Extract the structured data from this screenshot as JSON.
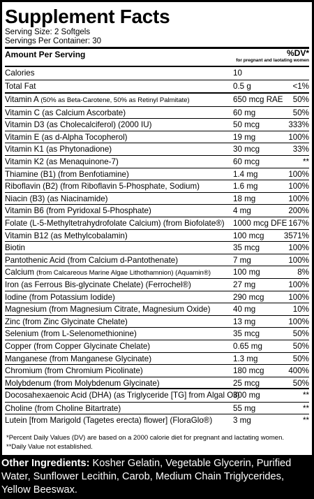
{
  "title": "Supplement Facts",
  "serving_size": "Serving Size: 2 Softgels",
  "servings_per_container": "Servings Per Container: 30",
  "header": {
    "amount_per_serving": "Amount Per Serving",
    "dv": "%DV*",
    "dv_note": "for pregnant and laotating women"
  },
  "group1": [
    {
      "name": "Calories",
      "amount": "10",
      "dv": ""
    },
    {
      "name": "Total Fat",
      "amount": "0.5 g",
      "dv": "<1%"
    }
  ],
  "group2": [
    {
      "name": "Vitamin A ",
      "name_small": "(50% as Beta-Carotene, 50% as Retinyl Palmitate)",
      "amount": "650 mcg RAE",
      "dv": "50%"
    },
    {
      "name": "Vitamin C (as Calcium Ascorbate)",
      "amount": "60 mg",
      "dv": "50%"
    },
    {
      "name": "Vitamin D3 (as Cholecalciferol) (2000 IU)",
      "amount": "50 mcg",
      "dv": "333%"
    },
    {
      "name": "Vitamin E (as d-Alpha Tocopherol)",
      "amount": "19 mg",
      "dv": "100%"
    },
    {
      "name": "Vitamin K1 (as Phytonadione)",
      "amount": "30 mcg",
      "dv": "33%"
    },
    {
      "name": "Vitamin K2 (as Menaquinone-7)",
      "amount": "60 mcg",
      "dv": "**"
    },
    {
      "name": "Thiamine (B1) (from Benfotiamine)",
      "amount": "1.4 mg",
      "dv": "100%"
    },
    {
      "name": "Riboflavin (B2) (from Riboflavin 5-Phosphate, Sodium)",
      "amount": "1.6 mg",
      "dv": "100%"
    },
    {
      "name": "Niacin (B3) (as Niacinamide)",
      "amount": "18 mg",
      "dv": "100%"
    },
    {
      "name": "Vitamin B6 (from Pyridoxal 5-Phosphate)",
      "amount": "4 mg",
      "dv": "200%"
    },
    {
      "name": "Folate (L-5-Methyltetrahydrofolate Calcium) (from Biofolate®)",
      "amount": "1000 mcg DFE",
      "dv": "167%"
    },
    {
      "name": "Vitamin B12 (as Methylcobalamin)",
      "amount": "100 mcg",
      "dv": "3571%"
    },
    {
      "name": "Biotin",
      "amount": "35 mcg",
      "dv": "100%"
    },
    {
      "name": "Pantothenic Acid (from Calcium d-Pantothenate)",
      "amount": "7 mg",
      "dv": "100%"
    },
    {
      "name": "Calcium ",
      "name_small": "(from Calcareous Marine Algae Lithothamnion) (Aquamin®)",
      "amount": "100 mg",
      "dv": "8%"
    },
    {
      "name": "Iron (as Ferrous Bis-glycinate Chelate) (Ferrochel®)",
      "amount": "27 mg",
      "dv": "100%"
    },
    {
      "name": "Iodine (from Potassium Iodide)",
      "amount": "290 mcg",
      "dv": "100%"
    },
    {
      "name": "Magnesium (from Magnesium Citrate, Magnesium Oxide)",
      "amount": "40 mg",
      "dv": "10%"
    },
    {
      "name": "Zinc (from Zinc Glycinate Chelate)",
      "amount": "13 mg",
      "dv": "100%"
    },
    {
      "name": "Selenium (from L-Selenomethionine)",
      "amount": "35 mcg",
      "dv": "50%"
    },
    {
      "name": "Copper (from Copper Glycinate Chelate)",
      "amount": "0.65 mg",
      "dv": "50%"
    },
    {
      "name": "Manganese (from Manganese Glycinate)",
      "amount": "1.3 mg",
      "dv": "50%"
    },
    {
      "name": "Chromium (from Chromium Picolinate)",
      "amount": "180 mcg",
      "dv": "400%"
    },
    {
      "name": "Molybdenum (from Molybdenum Glycinate)",
      "amount": "25 mcg",
      "dv": "50%"
    }
  ],
  "group3": [
    {
      "name": "Docosahexaenoic Acid (DHA) (as Triglyceride [TG] from Algal Oil)",
      "amount": "300 mg",
      "dv": "**"
    },
    {
      "name": "Choline (from Choline Bitartrate)",
      "amount": "55 mg",
      "dv": "**"
    },
    {
      "name": "Lutein [from Marigold (Tagetes erecta) flower] (FloraGlo®)",
      "amount": "3 mg",
      "dv": "**"
    }
  ],
  "footnotes": [
    "*Percent Daily Values (DV) are based on a 2000 calorie diet for pregnant and lactating women.",
    "**Daily Value not established."
  ],
  "other_ingredients_label": "Other Ingredients:",
  "other_ingredients_text": " Kosher Gelatin, Vegetable Glycerin, Purified Water, Sunflower Lecithin, Carob, Medium Chain Triglycerides, Yellow Beeswax."
}
